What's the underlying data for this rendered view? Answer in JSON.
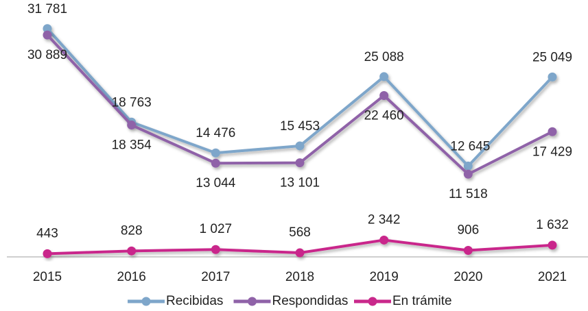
{
  "chart_data": {
    "type": "line",
    "categories": [
      "2015",
      "2016",
      "2017",
      "2018",
      "2019",
      "2020",
      "2021"
    ],
    "series": [
      {
        "name": "Recibidas",
        "color": "#7ea6ca",
        "values": [
          31781,
          18763,
          14476,
          15453,
          25088,
          12645,
          25049
        ],
        "value_labels": [
          "31 781",
          "18 763",
          "14 476",
          "15 453",
          "25 088",
          "12 645",
          "25 049"
        ]
      },
      {
        "name": "Respondidas",
        "color": "#8f62a8",
        "values": [
          30889,
          18354,
          13044,
          13101,
          22460,
          11518,
          17429
        ],
        "value_labels": [
          "30 889",
          "18 354",
          "13 044",
          "13 101",
          "22 460",
          "11 518",
          "17 429"
        ]
      },
      {
        "name": "En trámite",
        "color": "#c9288b",
        "values": [
          443,
          828,
          1027,
          568,
          2342,
          906,
          1632
        ],
        "value_labels": [
          "443",
          "828",
          "1 027",
          "568",
          "2 342",
          "906",
          "1 632"
        ]
      }
    ],
    "ylim": [
      0,
      35000
    ],
    "legend": "bottom"
  }
}
